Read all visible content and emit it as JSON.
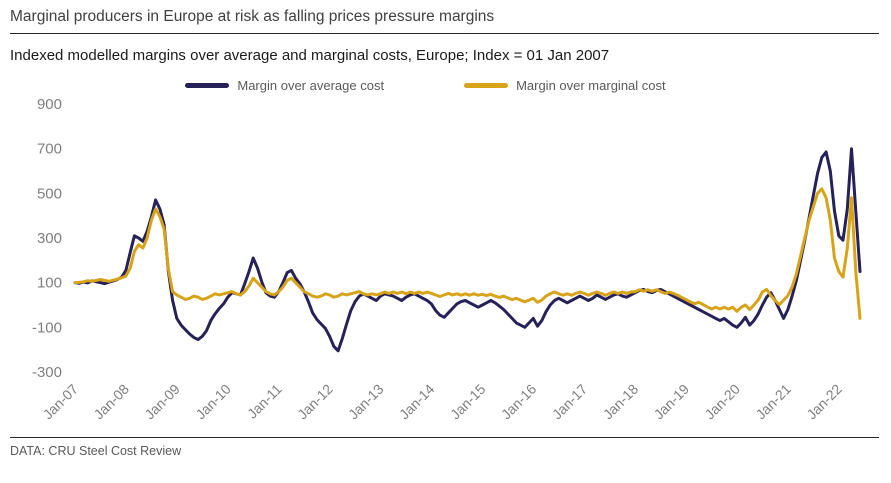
{
  "header": {
    "title": "Marginal producers in Europe at risk as falling prices pressure margins",
    "subtitle": "Indexed modelled margins over average and marginal costs, Europe; Index = 01 Jan 2007"
  },
  "footer": {
    "source": "DATA: CRU Steel Cost Review"
  },
  "colors": {
    "navy": "#262158",
    "gold": "#d7a319",
    "tick_gray": "#7f7f7f",
    "background": "#ffffff"
  },
  "chart_data": {
    "type": "line",
    "title": "Indexed modelled margins over average and marginal costs, Europe; Index = 01 Jan 2007",
    "xlabel": "",
    "ylabel": "",
    "ylim": [
      -300,
      900
    ],
    "yticks": [
      900,
      700,
      500,
      300,
      100,
      -100,
      -300
    ],
    "grid": false,
    "legend_position": "top",
    "x_tick_labels": [
      "Jan-07",
      "Jan-08",
      "Jan-09",
      "Jan-10",
      "Jan-11",
      "Jan-12",
      "Jan-13",
      "Jan-14",
      "Jan-15",
      "Jan-16",
      "Jan-17",
      "Jan-18",
      "Jan-19",
      "Jan-20",
      "Jan-21",
      "Jan-22"
    ],
    "x_tick_positions": [
      0,
      12,
      24,
      36,
      48,
      60,
      72,
      84,
      96,
      108,
      120,
      132,
      144,
      156,
      168,
      180
    ],
    "x_frequency": "monthly",
    "series": [
      {
        "name": "Margin over average cost",
        "color": "#262158",
        "values": [
          100,
          97,
          103,
          99,
          108,
          104,
          100,
          96,
          102,
          108,
          114,
          125,
          155,
          235,
          310,
          300,
          285,
          330,
          395,
          470,
          430,
          360,
          150,
          20,
          -60,
          -90,
          -110,
          -130,
          -145,
          -155,
          -140,
          -115,
          -70,
          -40,
          -15,
          5,
          35,
          55,
          50,
          45,
          95,
          150,
          210,
          165,
          105,
          55,
          40,
          35,
          60,
          100,
          145,
          155,
          120,
          95,
          60,
          15,
          -35,
          -65,
          -85,
          -105,
          -140,
          -185,
          -205,
          -150,
          -85,
          -25,
          15,
          40,
          50,
          40,
          30,
          20,
          40,
          50,
          45,
          40,
          30,
          20,
          35,
          45,
          50,
          40,
          30,
          20,
          5,
          -25,
          -45,
          -55,
          -35,
          -15,
          5,
          15,
          20,
          10,
          0,
          -10,
          0,
          10,
          20,
          10,
          -5,
          -20,
          -40,
          -60,
          -80,
          -90,
          -100,
          -80,
          -60,
          -95,
          -70,
          -30,
          0,
          20,
          30,
          20,
          10,
          20,
          30,
          40,
          30,
          20,
          30,
          45,
          35,
          25,
          35,
          45,
          50,
          40,
          35,
          45,
          55,
          65,
          70,
          60,
          55,
          65,
          70,
          60,
          50,
          40,
          30,
          20,
          10,
          0,
          -10,
          -20,
          -30,
          -40,
          -50,
          -60,
          -70,
          -60,
          -75,
          -90,
          -100,
          -80,
          -55,
          -90,
          -70,
          -40,
          0,
          35,
          55,
          20,
          -20,
          -60,
          -20,
          40,
          110,
          200,
          290,
          390,
          490,
          590,
          660,
          685,
          600,
          420,
          310,
          290,
          430,
          700,
          420,
          150
        ]
      },
      {
        "name": "Margin over marginal cost",
        "color": "#d7a319",
        "values": [
          100,
          101,
          104,
          109,
          106,
          110,
          114,
          110,
          106,
          111,
          116,
          122,
          130,
          165,
          240,
          270,
          255,
          300,
          380,
          430,
          395,
          340,
          160,
          60,
          45,
          35,
          25,
          30,
          40,
          35,
          25,
          30,
          40,
          50,
          45,
          50,
          55,
          60,
          50,
          45,
          60,
          85,
          120,
          100,
          80,
          60,
          50,
          45,
          60,
          80,
          110,
          120,
          100,
          80,
          60,
          50,
          40,
          35,
          40,
          50,
          45,
          35,
          40,
          50,
          45,
          50,
          55,
          60,
          50,
          45,
          50,
          45,
          50,
          58,
          52,
          58,
          52,
          58,
          50,
          58,
          52,
          58,
          52,
          58,
          52,
          45,
          38,
          45,
          52,
          45,
          50,
          44,
          50,
          44,
          50,
          44,
          48,
          42,
          48,
          40,
          34,
          40,
          32,
          24,
          30,
          22,
          14,
          22,
          30,
          12,
          22,
          40,
          50,
          58,
          50,
          44,
          50,
          44,
          52,
          58,
          52,
          44,
          52,
          58,
          52,
          44,
          52,
          58,
          52,
          58,
          52,
          58,
          60,
          68,
          62,
          68,
          62,
          68,
          60,
          52,
          58,
          52,
          44,
          34,
          24,
          14,
          5,
          12,
          2,
          -8,
          -18,
          -10,
          -18,
          -10,
          -18,
          -10,
          -28,
          -10,
          0,
          -20,
          0,
          22,
          58,
          70,
          42,
          20,
          2,
          22,
          42,
          80,
          140,
          220,
          300,
          380,
          440,
          500,
          520,
          480,
          380,
          210,
          150,
          125,
          255,
          480,
          150,
          -60
        ]
      }
    ]
  }
}
